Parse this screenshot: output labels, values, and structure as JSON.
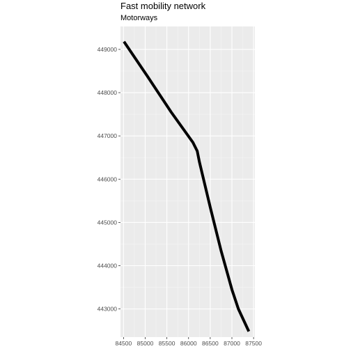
{
  "chart_data": {
    "type": "line",
    "title": "Fast mobility network",
    "subtitle": "Motorways",
    "xlabel": "",
    "ylabel": "",
    "xlim": [
      84430,
      87530
    ],
    "ylim": [
      442350,
      449530
    ],
    "x_ticks": [
      84500,
      85000,
      85500,
      86000,
      86500,
      87000,
      87500
    ],
    "y_ticks": [
      443000,
      444000,
      445000,
      446000,
      447000,
      448000,
      449000
    ],
    "grid": true,
    "panel_background": "#ebebeb",
    "line_color": "#000000",
    "series": [
      {
        "x": [
          84510,
          85050,
          85600,
          86100,
          86200,
          86250,
          86500,
          86750,
          87000,
          87150,
          87390
        ],
        "y": [
          449180,
          448380,
          447550,
          446850,
          446650,
          446400,
          445350,
          444350,
          443450,
          443000,
          442480
        ]
      }
    ]
  }
}
